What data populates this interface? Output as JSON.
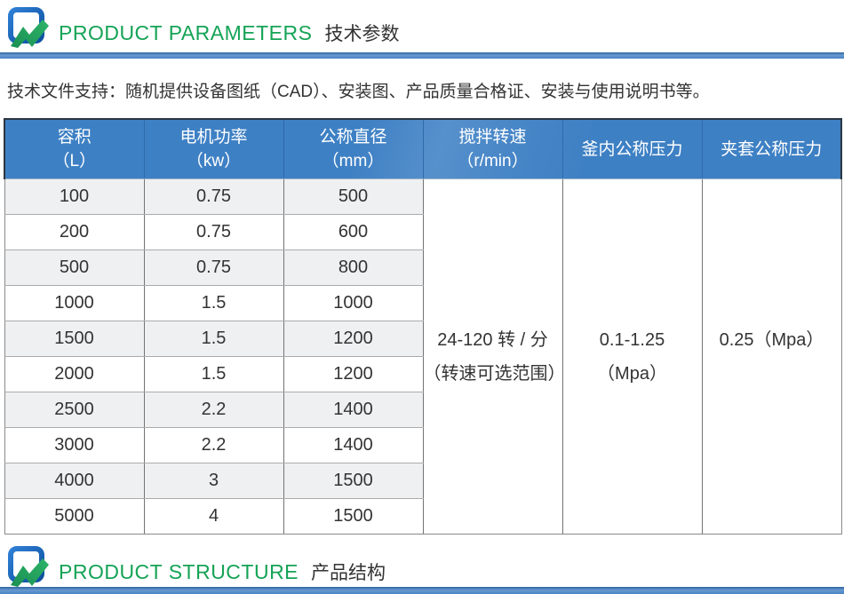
{
  "colors": {
    "accent_green": "#15a356",
    "header_blue": "#3e80c4",
    "divider_blue": "#4b84c4",
    "stripe_gray": "#eff0f2",
    "logo_blue": "#1565c0",
    "logo_green": "#21a366"
  },
  "icons": {
    "section_logo": "monitor-pulse-arrow-icon"
  },
  "section_headers": {
    "parameters": {
      "en": "PRODUCT PARAMETERS",
      "zh": "技术参数"
    },
    "structure": {
      "en": "PRODUCT STRUCTURE",
      "zh": "产品结构"
    }
  },
  "intro_text": "技术文件支持：随机提供设备图纸（CAD）、安装图、产品质量合格证、安装与使用说明书等。",
  "table": {
    "columns": [
      {
        "line1": "容积",
        "line2": "（L）"
      },
      {
        "line1": "电机功率",
        "line2": "（kw）"
      },
      {
        "line1": "公称直径",
        "line2": "（mm）"
      },
      {
        "line1": "搅拌转速",
        "line2": "（r/min）"
      },
      {
        "line1": "釜内公称压力",
        "line2": ""
      },
      {
        "line1": "夹套公称压力",
        "line2": ""
      }
    ],
    "rows": [
      [
        "100",
        "0.75",
        "500"
      ],
      [
        "200",
        "0.75",
        "600"
      ],
      [
        "500",
        "0.75",
        "800"
      ],
      [
        "1000",
        "1.5",
        "1000"
      ],
      [
        "1500",
        "1.5",
        "1200"
      ],
      [
        "2000",
        "1.5",
        "1200"
      ],
      [
        "2500",
        "2.2",
        "1400"
      ],
      [
        "3000",
        "2.2",
        "1400"
      ],
      [
        "4000",
        "3",
        "1500"
      ],
      [
        "5000",
        "4",
        "1500"
      ]
    ],
    "merged_cells": [
      {
        "name": "stirring-speed",
        "lines": [
          "24-120 转 / 分",
          "（转速可选范围）"
        ]
      },
      {
        "name": "kettle-pressure",
        "lines": [
          "0.1-1.25",
          "（Mpa）"
        ]
      },
      {
        "name": "jacket-pressure",
        "lines": [
          "0.25（Mpa）",
          ""
        ]
      }
    ]
  }
}
